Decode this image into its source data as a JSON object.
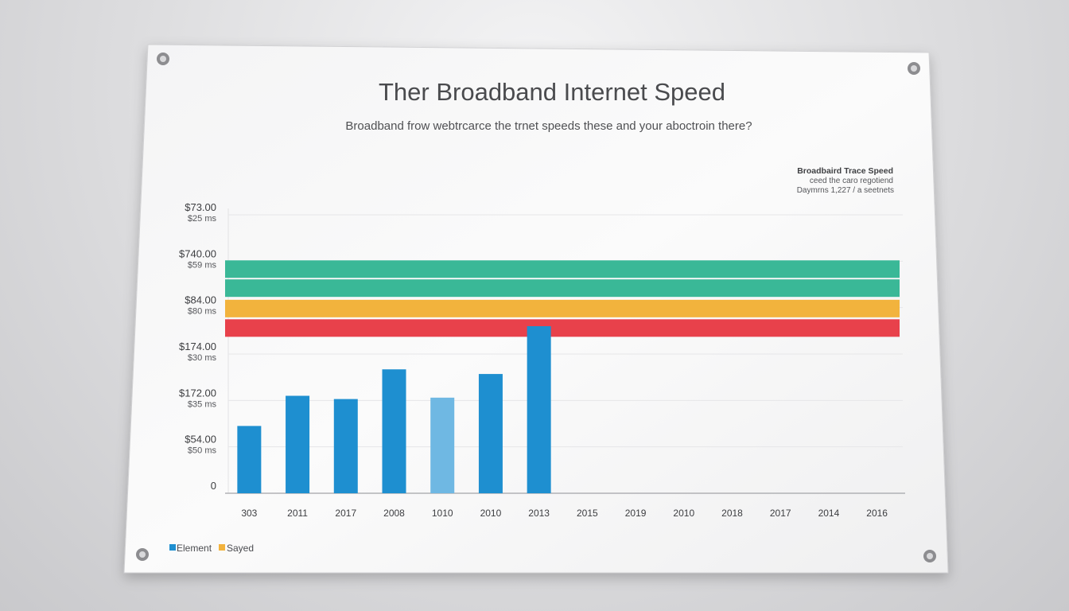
{
  "poster": {
    "title": "Ther Broadband Internet Speed",
    "subtitle": "Broadband frow webtrcarce the trnet speeds these and your aboctroin there?"
  },
  "info_box": {
    "line1": "Broadbaird Trace Speed",
    "line2": "ceed the caro regotiend",
    "line3": "Daymrns 1,227 / a seetnets"
  },
  "legend": {
    "items": [
      {
        "label": "Element",
        "color": "#1e8fd0"
      },
      {
        "label": "Sayed",
        "color": "#f2b33d"
      }
    ]
  },
  "chart_data": {
    "type": "bar",
    "title": "Ther Broadband Internet Speed",
    "y_ticks": [
      {
        "primary": "$73.00",
        "secondary": "$25 ms"
      },
      {
        "primary": "$740.00",
        "secondary": "$59 ms"
      },
      {
        "primary": "$84.00",
        "secondary": "$80 ms"
      },
      {
        "primary": "$174.00",
        "secondary": "$30 ms"
      },
      {
        "primary": "$172.00",
        "secondary": "$35 ms"
      },
      {
        "primary": "$54.00",
        "secondary": "$50 ms"
      },
      {
        "primary": "0",
        "secondary": ""
      }
    ],
    "ylim": [
      0,
      6
    ],
    "categories": [
      "303",
      "2011",
      "2017",
      "2008",
      "1010",
      "2010",
      "2013",
      "2015",
      "2019",
      "2010",
      "2018",
      "2017",
      "2014",
      "2016"
    ],
    "series": [
      {
        "values": [
          1.45,
          2.1,
          2.03,
          2.67,
          2.06,
          2.57,
          3.6,
          null,
          null,
          null,
          null,
          null,
          null,
          null
        ],
        "colors": [
          "#1e8fd0",
          "#1e8fd0",
          "#1e8fd0",
          "#1e8fd0",
          "#6fb8e3",
          "#1e8fd0",
          "#1e8fd0"
        ]
      }
    ],
    "bands": [
      {
        "value": 4.83,
        "color": "#3ab897"
      },
      {
        "value": 4.42,
        "color": "#3ab897"
      },
      {
        "value": 3.98,
        "color": "#f2b33d"
      },
      {
        "value": 3.56,
        "color": "#e8414b"
      }
    ],
    "grid": true
  }
}
